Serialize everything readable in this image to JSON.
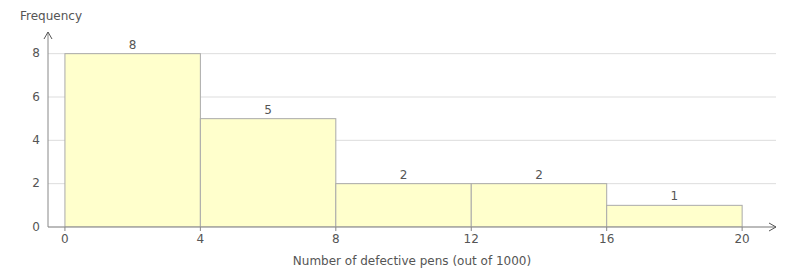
{
  "chart_data": {
    "type": "histogram",
    "xlabel": "Number of defective pens (out of 1000)",
    "ylabel": "Frequency",
    "bins": [
      0,
      4,
      8,
      12,
      16,
      20
    ],
    "values": [
      8,
      5,
      2,
      2,
      1
    ],
    "color": "#ffffcc",
    "xlim": [
      -0.5,
      21
    ],
    "xticks": [
      0,
      4,
      8,
      12,
      16,
      20
    ],
    "ylim": [
      0,
      9
    ],
    "yticks": [
      0,
      2,
      4,
      6,
      8
    ],
    "grid": true,
    "data_labels": true
  }
}
